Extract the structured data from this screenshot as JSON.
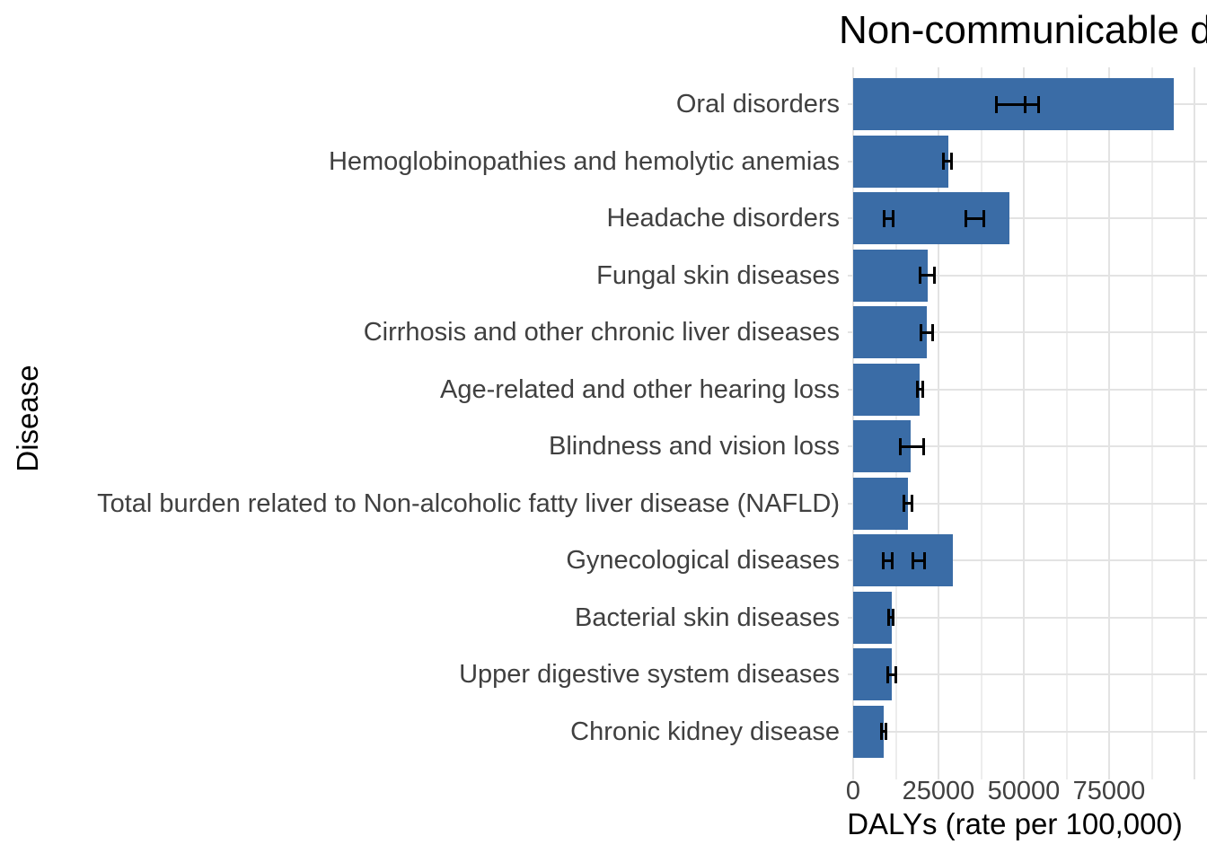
{
  "chart_data": {
    "type": "bar",
    "orientation": "horizontal",
    "title": "Non-communicable d",
    "xlabel": "DALYs (rate per 100,000)",
    "ylabel": "Disease",
    "x_tick_labels": [
      "0",
      "25000",
      "50000",
      "75000"
    ],
    "x_tick_values": [
      0,
      25000,
      50000,
      75000
    ],
    "xlim": [
      0,
      104000
    ],
    "grid": "both-major-and-minor-vertical, horizontal-at-category-centers",
    "legend": "none",
    "categories": [
      "Oral disorders",
      "Hemoglobinopathies and hemolytic anemias",
      "Headache disorders",
      "Fungal skin diseases",
      "Cirrhosis and other chronic liver diseases",
      "Age-related and other hearing loss",
      "Blindness and vision loss",
      "Total burden related to Non-alcoholic fatty liver disease (NAFLD)",
      "Gynecological diseases",
      "Bacterial skin diseases",
      "Upper digestive system diseases",
      "Chronic kidney disease"
    ],
    "values": [
      93900,
      27900,
      45800,
      21800,
      21600,
      19500,
      16800,
      16100,
      29200,
      11300,
      11300,
      8900
    ],
    "error_bars": [
      [
        [
          42100,
          50400
        ],
        [
          50400,
          54300
        ]
      ],
      [
        [
          26400,
          28800
        ]
      ],
      [
        [
          9200,
          11800
        ],
        [
          32900,
          38200
        ]
      ],
      [
        [
          19700,
          23700
        ]
      ],
      [
        [
          19800,
          23200
        ]
      ],
      [
        [
          18700,
          20400
        ]
      ],
      [
        [
          13700,
          20600
        ]
      ],
      [
        [
          14800,
          17300
        ]
      ],
      [
        [
          8800,
          11400
        ],
        [
          17500,
          20800
        ]
      ],
      [
        [
          10300,
          11800
        ]
      ],
      [
        [
          10200,
          12400
        ]
      ],
      [
        [
          8300,
          9700
        ]
      ]
    ],
    "colors": {
      "bar": "#3A6CA6",
      "grid_major": "#E3E3E3",
      "grid_minor": "#EDEDED",
      "axis_text": "#404040",
      "title_text": "#000000",
      "errorbar": "#000000"
    }
  }
}
